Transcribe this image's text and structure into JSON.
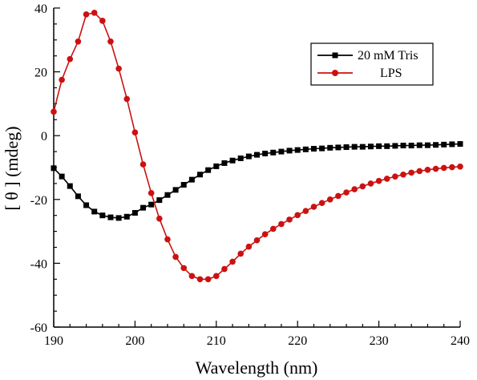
{
  "chart_data": {
    "type": "line",
    "xlabel": "Wavelength (nm)",
    "ylabel": "[ θ ] (mdeg)",
    "xlim": [
      190,
      240
    ],
    "ylim": [
      -60,
      40
    ],
    "xticks": [
      190,
      200,
      210,
      220,
      230,
      240
    ],
    "yticks": [
      40,
      20,
      0,
      -20,
      -40,
      -60
    ],
    "legend_position": "top-right",
    "grid": false,
    "series": [
      {
        "name": "20 mM Tris",
        "color": "#000000",
        "marker": "square",
        "x": [
          190,
          191,
          192,
          193,
          194,
          195,
          196,
          197,
          198,
          199,
          200,
          201,
          202,
          203,
          204,
          205,
          206,
          207,
          208,
          209,
          210,
          211,
          212,
          213,
          214,
          215,
          216,
          217,
          218,
          219,
          220,
          221,
          222,
          223,
          224,
          225,
          226,
          227,
          228,
          229,
          230,
          231,
          232,
          233,
          234,
          235,
          236,
          237,
          238,
          239,
          240
        ],
        "y": [
          -10.2,
          -12.8,
          -15.8,
          -19.0,
          -21.8,
          -23.8,
          -25.0,
          -25.6,
          -25.8,
          -25.4,
          -24.2,
          -22.6,
          -21.6,
          -20.2,
          -18.6,
          -17.0,
          -15.4,
          -13.8,
          -12.2,
          -10.8,
          -9.6,
          -8.6,
          -7.8,
          -7.1,
          -6.5,
          -6.0,
          -5.6,
          -5.3,
          -5.0,
          -4.7,
          -4.5,
          -4.3,
          -4.1,
          -4.0,
          -3.8,
          -3.7,
          -3.6,
          -3.5,
          -3.5,
          -3.4,
          -3.3,
          -3.3,
          -3.2,
          -3.1,
          -3.1,
          -3.0,
          -3.0,
          -2.9,
          -2.8,
          -2.7,
          -2.6
        ]
      },
      {
        "name": "LPS",
        "color": "#cc1111",
        "marker": "circle",
        "x": [
          190,
          191,
          192,
          193,
          194,
          195,
          196,
          197,
          198,
          199,
          200,
          201,
          202,
          203,
          204,
          205,
          206,
          207,
          208,
          209,
          210,
          211,
          212,
          213,
          214,
          215,
          216,
          217,
          218,
          219,
          220,
          221,
          222,
          223,
          224,
          225,
          226,
          227,
          228,
          229,
          230,
          231,
          232,
          233,
          234,
          235,
          236,
          237,
          238,
          239,
          240
        ],
        "y": [
          7.5,
          17.5,
          24.0,
          29.5,
          38.0,
          38.5,
          36.0,
          29.5,
          21.0,
          11.5,
          1.0,
          -9.0,
          -18.0,
          -26.0,
          -32.5,
          -38.0,
          -41.5,
          -44.0,
          -45.0,
          -45.0,
          -44.0,
          -41.8,
          -39.5,
          -37.0,
          -34.8,
          -32.8,
          -30.9,
          -29.2,
          -27.7,
          -26.3,
          -24.9,
          -23.6,
          -22.3,
          -21.1,
          -20.0,
          -18.9,
          -17.8,
          -16.8,
          -15.9,
          -15.0,
          -14.2,
          -13.5,
          -12.8,
          -12.2,
          -11.6,
          -11.1,
          -10.7,
          -10.4,
          -10.1,
          -9.9,
          -9.7
        ]
      }
    ]
  }
}
